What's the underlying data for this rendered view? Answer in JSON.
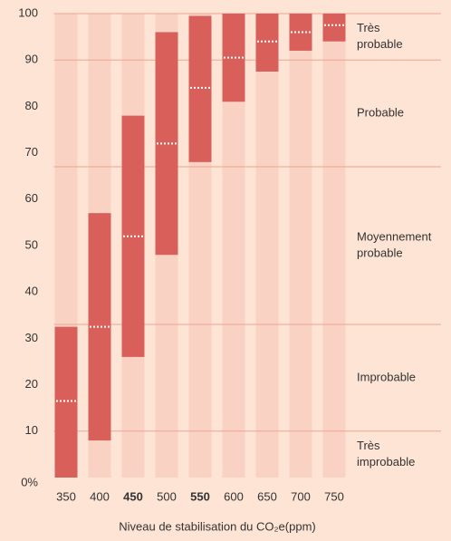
{
  "chart_data": {
    "type": "range_bar",
    "categories": [
      "350",
      "400",
      "450",
      "500",
      "550",
      "600",
      "650",
      "700",
      "750"
    ],
    "bold": [
      false,
      false,
      true,
      false,
      true,
      false,
      false,
      false,
      false
    ],
    "low": [
      0,
      8,
      26,
      48,
      68,
      81,
      87.5,
      92,
      94
    ],
    "high": [
      32.5,
      57,
      78,
      96,
      99.5,
      100,
      100,
      100,
      100
    ],
    "median": [
      16.5,
      32.5,
      52,
      72,
      84,
      90.5,
      94,
      96,
      97.5
    ],
    "color": "#d95f5a",
    "median_color": "#ffffff",
    "ylim": [
      0,
      100
    ],
    "yticks": [
      {
        "value": 0,
        "label": "0%"
      },
      10,
      20,
      30,
      40,
      50,
      60,
      70,
      80,
      90,
      100
    ],
    "zones": [
      {
        "from": 0,
        "to": 10,
        "label": [
          "Très",
          "improbable"
        ]
      },
      {
        "from": 10,
        "to": 33,
        "label": [
          "Improbable"
        ]
      },
      {
        "from": 33,
        "to": 67,
        "label": [
          "Moyennement",
          "probable"
        ]
      },
      {
        "from": 67,
        "to": 90,
        "label": [
          "Probable"
        ]
      },
      {
        "from": 90,
        "to": 100,
        "label": [
          "Très",
          "probable"
        ]
      }
    ],
    "xlabel": "Niveau de stabilisation du CO₂e(ppm)"
  }
}
